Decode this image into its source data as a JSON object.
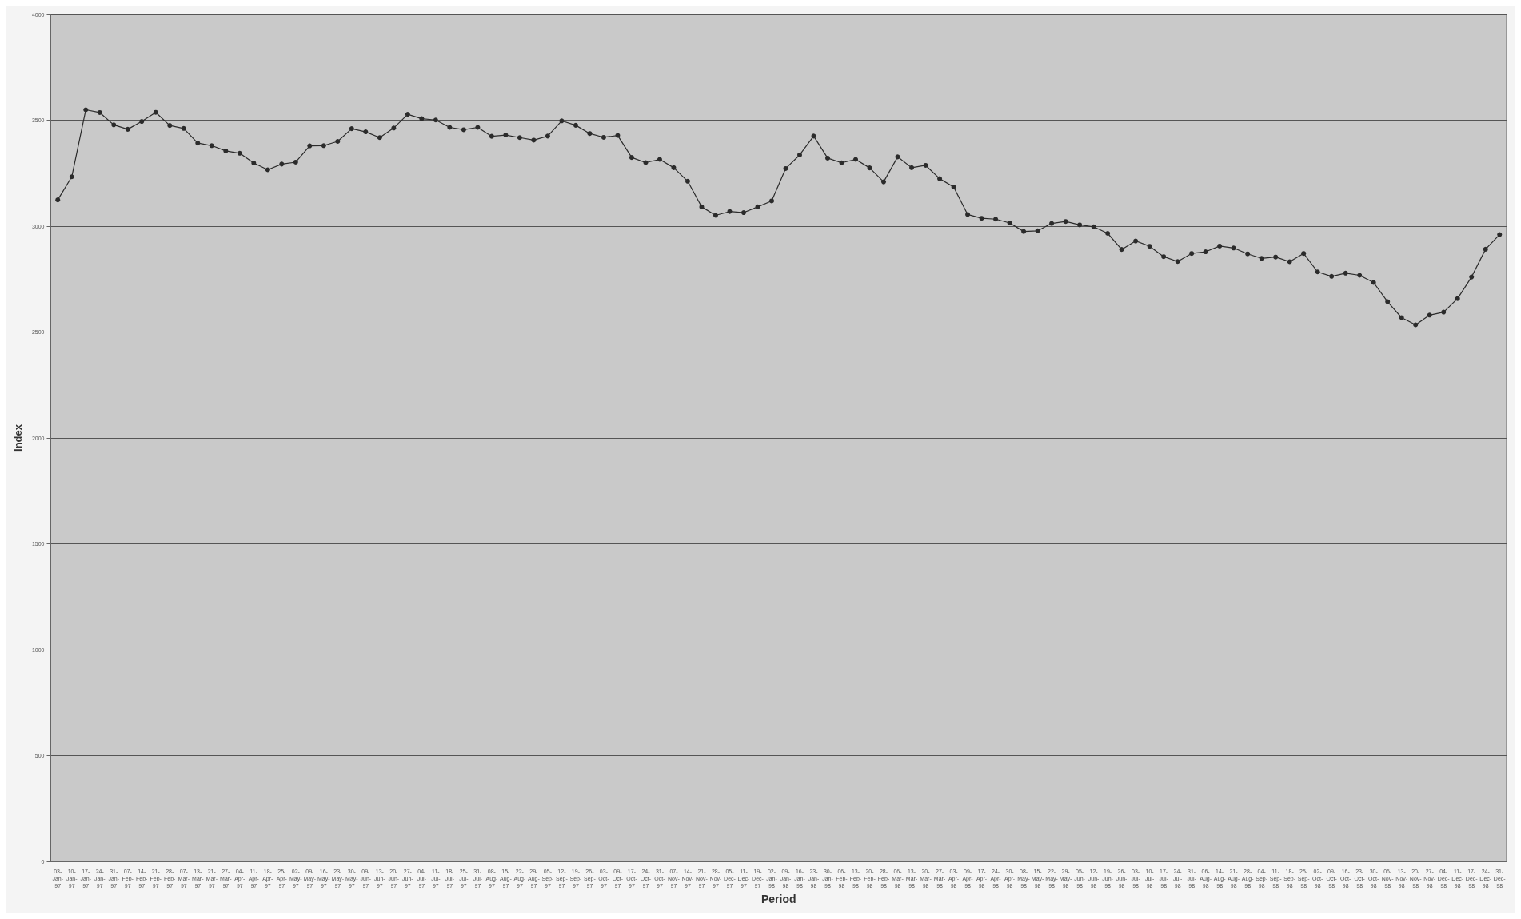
{
  "chart_data": {
    "type": "line",
    "xlabel": "Period",
    "ylabel": "Index",
    "categories": [
      "03-Jan-97",
      "10-Jan-97",
      "17-Jan-97",
      "24-Jan-97",
      "31-Jan-97",
      "07-Feb-97",
      "14-Feb-97",
      "21-Feb-97",
      "28-Feb-97",
      "07-Mar-97",
      "13-Mar-97",
      "21-Mar-97",
      "27-Mar-97",
      "04-Apr-97",
      "11-Apr-97",
      "18-Apr-97",
      "25-Apr-97",
      "02-May-97",
      "09-May-97",
      "16-May-97",
      "23-May-97",
      "30-May-97",
      "09-Jun-97",
      "13-Jun-97",
      "20-Jun-97",
      "27-Jun-97",
      "04-Jul-97",
      "11-Jul-97",
      "18-Jul-97",
      "25-Jul-97",
      "31-Jul-97",
      "08-Aug-97",
      "15-Aug-97",
      "22-Aug-97",
      "29-Aug-97",
      "05-Sep-97",
      "12-Sep-97",
      "19-Sep-97",
      "26-Sep-97",
      "03-Oct-97",
      "09-Oct-97",
      "17-Oct-97",
      "24-Oct-97",
      "31-Oct-97",
      "07-Nov-97",
      "14-Nov-97",
      "21-Nov-97",
      "28-Nov-97",
      "05-Dec-97",
      "11-Dec-97",
      "19-Dec-97",
      "02-Jan-98",
      "09-Jan-98",
      "16-Jan-98",
      "23-Jan-98",
      "30-Jan-98",
      "06-Feb-98",
      "13-Feb-98",
      "20-Feb-98",
      "28-Feb-98",
      "06-Mar-98",
      "13-Mar-98",
      "20-Mar-98",
      "27-Mar-98",
      "03-Apr-98",
      "09-Apr-98",
      "17-Apr-98",
      "24-Apr-98",
      "30-Apr-98",
      "08-May-98",
      "15-May-98",
      "22-May-98",
      "29-May-98",
      "05-Jun-98",
      "12-Jun-98",
      "19-Jun-98",
      "26-Jun-98",
      "03-Jul-98",
      "10-Jul-98",
      "17-Jul-98",
      "24-Jul-98",
      "31-Jul-98",
      "06-Aug-98",
      "14-Aug-98",
      "21-Aug-98",
      "28-Aug-98",
      "04-Sep-98",
      "11-Sep-98",
      "18-Sep-98",
      "25-Sep-98",
      "02-Oct-98",
      "09-Oct-98",
      "16-Oct-98",
      "23-Oct-98",
      "30-Oct-98",
      "06-Nov-98",
      "13-Nov-98",
      "20-Nov-98",
      "27-Nov-98",
      "04-Dec-98",
      "11-Dec-98",
      "17-Dec-98",
      "24-Dec-98",
      "31-Dec-98"
    ],
    "series": [
      {
        "color": "#2b2b2b",
        "values": [
          3124,
          3233,
          3549,
          3536,
          3478,
          3457,
          3494,
          3537,
          3475,
          3461,
          3392,
          3380,
          3355,
          3344,
          3298,
          3266,
          3293,
          3302,
          3379,
          3380,
          3400,
          3460,
          3445,
          3418,
          3463,
          3528,
          3507,
          3501,
          3466,
          3455,
          3466,
          3424,
          3430,
          3418,
          3406,
          3425,
          3497,
          3476,
          3437,
          3419,
          3428,
          3324,
          3300,
          3315,
          3276,
          3212,
          3091,
          3051,
          3069,
          3064,
          3091,
          3119,
          3272,
          3336,
          3425,
          3321,
          3299,
          3315,
          3275,
          3209,
          3327,
          3276,
          3287,
          3224,
          3185,
          3055,
          3037,
          3033,
          3015,
          2975,
          2978,
          3013,
          3022,
          3006,
          2997,
          2966,
          2890,
          2930,
          2905,
          2856,
          2833,
          2871,
          2879,
          2906,
          2897,
          2869,
          2848,
          2854,
          2832,
          2871,
          2784,
          2763,
          2778,
          2768,
          2734,
          2643,
          2568,
          2534,
          2580,
          2594,
          2658,
          2760,
          2891,
          2960
        ]
      }
    ],
    "ylim": [
      0,
      4000
    ],
    "yticks": [
      0,
      500,
      1000,
      1500,
      2000,
      2500,
      3000,
      3500,
      4000
    ],
    "grid": "y",
    "marker": "circle",
    "line_style": "solid"
  }
}
